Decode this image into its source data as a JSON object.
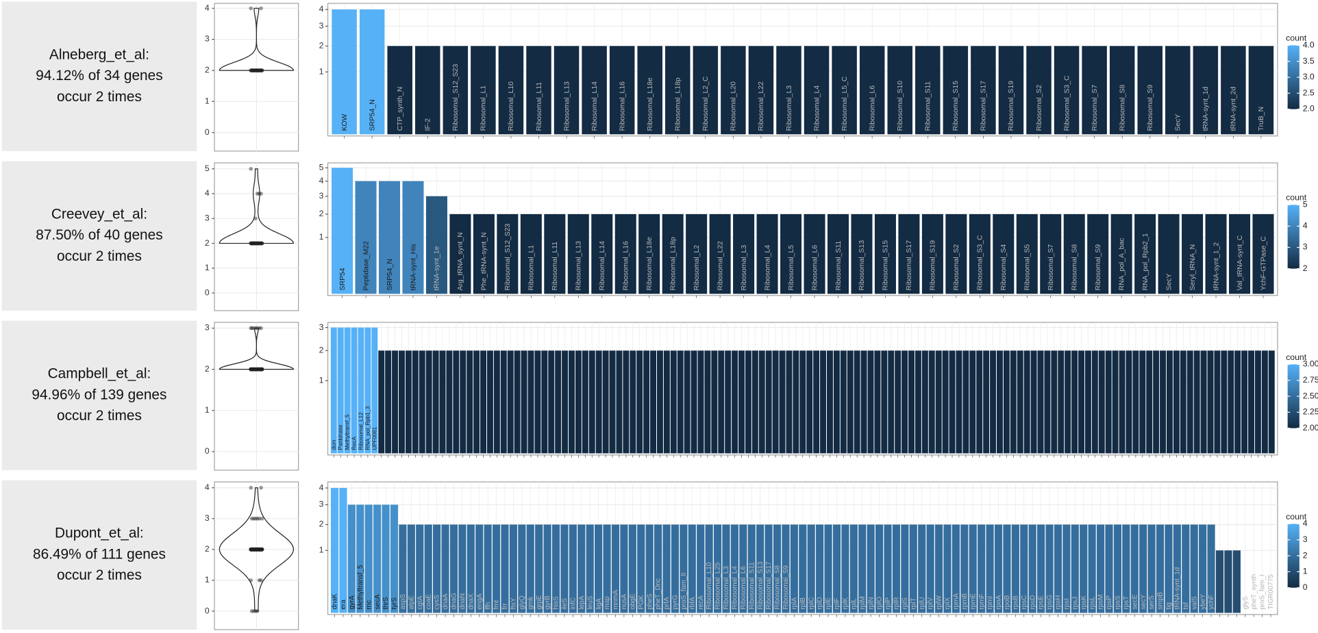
{
  "chart_data": [
    {
      "type": "bar",
      "title": [
        "Alneberg_et_al:",
        "94.12% of 34 genes",
        "occur 2 times"
      ],
      "categories": [
        "KOW",
        "SRP54_N",
        "CTP_synth_N",
        "IF-2",
        "Ribosomal_S12_S23",
        "Ribosomal_L1",
        "Ribosomal_L10",
        "Ribosomal_L11",
        "Ribosomal_L13",
        "Ribosomal_L14",
        "Ribosomal_L16",
        "Ribosomal_L18e",
        "Ribosomal_L18p",
        "Ribosomal_L2_C",
        "Ribosomal_L20",
        "Ribosomal_L22",
        "Ribosomal_L3",
        "Ribosomal_L4",
        "Ribosomal_L5_C",
        "Ribosomal_L6",
        "Ribosomal_S10",
        "Ribosomal_S11",
        "Ribosomal_S15",
        "Ribosomal_S17",
        "Ribosomal_S19",
        "Ribosomal_S2",
        "Ribosomal_S3_C",
        "Ribosomal_S7",
        "Ribosomal_S8",
        "Ribosomal_S9",
        "SecY",
        "tRNA-synt_1d",
        "tRNA-synt_2d",
        "TruB_N"
      ],
      "values": [
        4,
        4,
        2,
        2,
        2,
        2,
        2,
        2,
        2,
        2,
        2,
        2,
        2,
        2,
        2,
        2,
        2,
        2,
        2,
        2,
        2,
        2,
        2,
        2,
        2,
        2,
        2,
        2,
        2,
        2,
        2,
        2,
        2,
        2
      ],
      "yscale": "sqrt",
      "ylim": [
        0,
        4.4
      ],
      "yticks": [
        1,
        2,
        3,
        4
      ],
      "grid": true,
      "violin": {
        "ylim": [
          -0.6,
          4.16
        ],
        "yticks": [
          0,
          1,
          2,
          3,
          4
        ]
      },
      "legend_title": "count",
      "color_low": "#132B43",
      "color_high": "#56B1F7",
      "clim": [
        2,
        4
      ],
      "colorbar_ticks": [
        {
          "value": 2,
          "label": "2.0"
        },
        2.5,
        {
          "value": 3,
          "label": "3.0"
        },
        3.5,
        {
          "value": 4,
          "label": "4.0"
        }
      ]
    },
    {
      "type": "bar",
      "title": [
        "Creevey_et_al:",
        "87.50% of 40 genes",
        "occur 2 times"
      ],
      "categories": [
        "SRP54",
        "Peptidase_M22",
        "SRP54_N",
        "tRNA-synt_His",
        "tRNA-synt_1e",
        "Arg_tRNA_synt_N",
        "Phe_tRNA-synt_N",
        "Ribosomal_S12_S23",
        "Ribosomal_L1",
        "Ribosomal_L11",
        "Ribosomal_L13",
        "Ribosomal_L14",
        "Ribosomal_L16",
        "Ribosomal_L18e",
        "Ribosomal_L18p",
        "Ribosomal_L2",
        "Ribosomal_L22",
        "Ribosomal_L3",
        "Ribosomal_L4",
        "Ribosomal_L5",
        "Ribosomal_L6",
        "Ribosomal_S11",
        "Ribosomal_S13",
        "Ribosomal_S15",
        "Ribosomal_S17",
        "Ribosomal_S19",
        "Ribosomal_S2",
        "Ribosomal_S3_C",
        "Ribosomal_S4",
        "Ribosomal_S5",
        "Ribosomal_S7",
        "Ribosomal_S8",
        "Ribosomal_S9",
        "RNA_pol_A_bac",
        "RNA_pol_Rpb2_1",
        "SecY",
        "Seryl_tRNA_N",
        "tRNA-synt_1_2",
        "Val_tRNA-synt_C",
        "YchF-GTPase_C"
      ],
      "values": [
        5,
        4,
        4,
        4,
        3,
        2,
        2,
        2,
        2,
        2,
        2,
        2,
        2,
        2,
        2,
        2,
        2,
        2,
        2,
        2,
        2,
        2,
        2,
        2,
        2,
        2,
        2,
        2,
        2,
        2,
        2,
        2,
        2,
        2,
        2,
        2,
        2,
        2,
        2,
        2
      ],
      "yscale": "sqrt",
      "ylim": [
        0,
        5.4
      ],
      "yticks": [
        1,
        2,
        3,
        4,
        5
      ],
      "grid": true,
      "violin": {
        "ylim": [
          -0.71,
          5.24
        ],
        "yticks": [
          0,
          1,
          2,
          3,
          4,
          5
        ]
      },
      "legend_title": "count",
      "color_low": "#132B43",
      "color_high": "#56B1F7",
      "clim": [
        2,
        5
      ],
      "colorbar_ticks": [
        2,
        3,
        4,
        5
      ]
    },
    {
      "type": "bar",
      "title": [
        "Campbell_et_al:",
        "94.96% of 139 genes",
        "occur 2 times"
      ],
      "categories": [
        "dcm",
        "Pankinase",
        "Methyltransf_5",
        "RecA",
        "Ribosomal_L12",
        "RNA_pol_Rpb1_3",
        "UPF0081",
        null,
        null,
        null,
        null,
        null,
        null,
        null,
        null,
        null,
        null,
        null,
        null,
        null,
        null,
        null,
        null,
        null,
        null,
        null,
        null,
        null,
        null,
        null,
        null,
        null,
        null,
        null,
        null,
        null,
        null,
        null,
        null,
        null,
        null,
        null,
        null,
        null,
        null,
        null,
        null,
        null,
        null,
        null,
        null,
        null,
        null,
        null,
        null,
        null,
        null,
        null,
        null,
        null,
        null,
        null,
        null,
        null,
        null,
        null,
        null,
        null,
        null,
        null,
        null,
        null,
        null,
        null,
        null,
        null,
        null,
        null,
        null,
        null,
        null,
        null,
        null,
        null,
        null,
        null,
        null,
        null,
        null,
        null,
        null,
        null,
        null,
        null,
        null,
        null,
        null,
        null,
        null,
        null,
        null,
        null,
        null,
        null,
        null,
        null,
        null,
        null,
        null,
        null,
        null,
        null,
        null,
        null,
        null,
        null,
        null,
        null,
        null,
        null,
        null,
        null,
        null,
        null,
        null,
        null,
        null,
        null,
        null,
        null,
        null,
        null,
        null,
        null,
        null,
        null,
        null,
        null,
        null
      ],
      "values": [
        3,
        3,
        3,
        3,
        3,
        3,
        3,
        2,
        2,
        2,
        2,
        2,
        2,
        2,
        2,
        2,
        2,
        2,
        2,
        2,
        2,
        2,
        2,
        2,
        2,
        2,
        2,
        2,
        2,
        2,
        2,
        2,
        2,
        2,
        2,
        2,
        2,
        2,
        2,
        2,
        2,
        2,
        2,
        2,
        2,
        2,
        2,
        2,
        2,
        2,
        2,
        2,
        2,
        2,
        2,
        2,
        2,
        2,
        2,
        2,
        2,
        2,
        2,
        2,
        2,
        2,
        2,
        2,
        2,
        2,
        2,
        2,
        2,
        2,
        2,
        2,
        2,
        2,
        2,
        2,
        2,
        2,
        2,
        2,
        2,
        2,
        2,
        2,
        2,
        2,
        2,
        2,
        2,
        2,
        2,
        2,
        2,
        2,
        2,
        2,
        2,
        2,
        2,
        2,
        2,
        2,
        2,
        2,
        2,
        2,
        2,
        2,
        2,
        2,
        2,
        2,
        2,
        2,
        2,
        2,
        2,
        2,
        2,
        2,
        2,
        2,
        2,
        2,
        2,
        2,
        2,
        2,
        2,
        2,
        2,
        2,
        2,
        2,
        2
      ],
      "yscale": "sqrt",
      "ylim": [
        0,
        3.25
      ],
      "yticks": [
        1,
        2,
        3
      ],
      "grid": true,
      "violin": {
        "ylim": [
          -0.45,
          3.14
        ],
        "yticks": [
          0,
          1,
          2,
          3
        ]
      },
      "legend_title": "count",
      "color_low": "#132B43",
      "color_high": "#56B1F7",
      "clim": [
        2,
        3
      ],
      "colorbar_ticks": [
        {
          "value": 2,
          "label": "2.00"
        },
        2.25,
        {
          "value": 2.5,
          "label": "2.50"
        },
        2.75,
        {
          "value": 3,
          "label": "3.00"
        }
      ]
    },
    {
      "type": "bar",
      "title": [
        "Dupont_et_al:",
        "86.49% of 111 genes",
        "occur 2 times"
      ],
      "categories": [
        "dnaK",
        "era",
        "gyrA",
        "Methyltransf_5",
        "rnc",
        "secA",
        "thrS",
        "tyrS",
        "aspS",
        "atpE",
        "cgtA",
        "coaE",
        "cysS",
        "dnaA",
        "dnaG",
        "dnaN",
        "dnaX",
        "engA",
        "ffh",
        "fmt",
        "frr",
        "ftsY",
        "glyQ",
        "gmk",
        "grpE",
        "gyrB",
        "hisS",
        "ileS",
        "infC",
        "lepA",
        "leuS",
        "ligA",
        "map",
        "mnmA",
        "nusA",
        "obgE",
        "PGK",
        "pheS",
        "pheT_Dnc",
        "prfA",
        "pyrG",
        "proS_fam_II",
        "rbfA",
        "recA",
        "Ribosomal_L10",
        "Ribosomal_L25",
        "Ribosomal_L3",
        "Ribosomal_L4",
        "Ribosomal_L6",
        "Ribosomal_S11",
        "Ribosomal_S13",
        "Ribosomal_S17",
        "Ribosomal_S8",
        "Ribosomal_S9",
        "rplA",
        "rplB",
        "rplC",
        "rplD",
        "rplE",
        "rplF",
        "rplK",
        "rplL",
        "rplM",
        "rplN",
        "rplO",
        "rplP",
        "rplR",
        "rplS",
        "rplT",
        "rplU",
        "rplV",
        "rplW",
        "rplX",
        "rpmA",
        "rpmB",
        "rpmE",
        "rpmF",
        "rpmI",
        "rpoA",
        "rpoB",
        "rpsB",
        "rpsC",
        "rpsD",
        "rpsE",
        "rpsG",
        "rpsH",
        "rpsI",
        "rpsJ",
        "rpsK",
        "rpsL",
        "rpsM",
        "rpsP",
        "rpsS",
        "rpsT",
        "secE",
        "secY",
        "serS",
        "smpB",
        "tig",
        "tRNA-synt_1d",
        "tsf",
        "valS",
        "ybeY",
        "ychF",
        null,
        null,
        null,
        "glyS",
        "pheT_synth",
        "proS_fam_I",
        "TIGR00775"
      ],
      "values": [
        4,
        4,
        3,
        3,
        3,
        3,
        3,
        3,
        2,
        2,
        2,
        2,
        2,
        2,
        2,
        2,
        2,
        2,
        2,
        2,
        2,
        2,
        2,
        2,
        2,
        2,
        2,
        2,
        2,
        2,
        2,
        2,
        2,
        2,
        2,
        2,
        2,
        2,
        2,
        2,
        2,
        2,
        2,
        2,
        2,
        2,
        2,
        2,
        2,
        2,
        2,
        2,
        2,
        2,
        2,
        2,
        2,
        2,
        2,
        2,
        2,
        2,
        2,
        2,
        2,
        2,
        2,
        2,
        2,
        2,
        2,
        2,
        2,
        2,
        2,
        2,
        2,
        2,
        2,
        2,
        2,
        2,
        2,
        2,
        2,
        2,
        2,
        2,
        2,
        2,
        2,
        2,
        2,
        2,
        2,
        2,
        2,
        2,
        2,
        2,
        2,
        2,
        2,
        2,
        1,
        1,
        1,
        0,
        0,
        0,
        0
      ],
      "yscale": "sqrt",
      "ylim": [
        0,
        4.4
      ],
      "yticks": [
        1,
        2,
        3,
        4
      ],
      "grid": true,
      "violin": {
        "ylim": [
          -0.6,
          4.19
        ],
        "yticks": [
          0,
          1,
          2,
          3,
          4
        ]
      },
      "legend_title": "count",
      "color_low": "#132B43",
      "color_high": "#56B1F7",
      "clim": [
        0,
        4
      ],
      "colorbar_ticks": [
        0,
        1,
        2,
        3,
        4
      ]
    }
  ]
}
